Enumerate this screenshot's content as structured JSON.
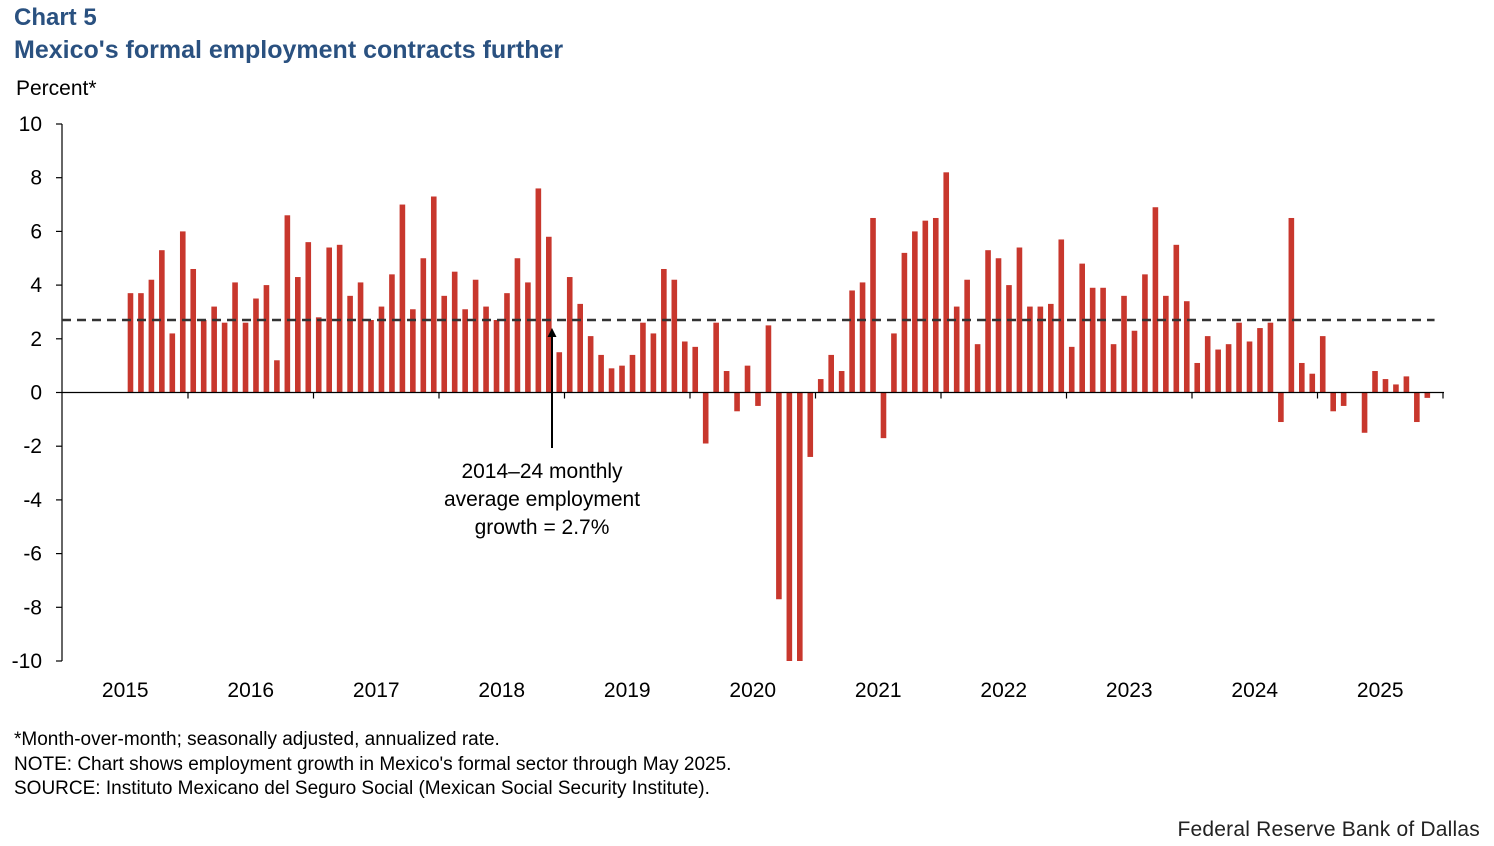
{
  "header": {
    "chart_label": "Chart 5",
    "title": "Mexico's formal employment contracts further"
  },
  "footer": {
    "note1": "*Month-over-month; seasonally adjusted, annualized rate.",
    "note2": "NOTE: Chart shows employment growth in Mexico's formal sector through May 2025.",
    "note3": "SOURCE: Instituto Mexicano del Seguro Social (Mexican Social Security Institute).",
    "brand": "Federal Reserve Bank of Dallas"
  },
  "colors": {
    "bar": "#c8372d",
    "title": "#2a5180",
    "avg_line": "#333333"
  },
  "chart_data": {
    "type": "bar",
    "title": "Mexico's formal employment contracts further",
    "ylabel": "Percent*",
    "xlabel": "",
    "ylim": [
      -10,
      10
    ],
    "yticks": [
      10,
      8,
      6,
      4,
      2,
      0,
      -2,
      -4,
      -6,
      -8,
      -10
    ],
    "year_labels": [
      "2015",
      "2016",
      "2017",
      "2018",
      "2019",
      "2020",
      "2021",
      "2022",
      "2023",
      "2024",
      "2025"
    ],
    "start": "2014-07",
    "end": "2025-05",
    "average_line": {
      "value": 2.7,
      "label_lines": [
        "2014–24 monthly",
        "average employment",
        "growth = 2.7%"
      ]
    },
    "series": [
      {
        "name": "Formal employment growth (month-over-month, SAAR)",
        "values": [
          3.7,
          3.7,
          4.2,
          5.3,
          2.2,
          6.0,
          4.6,
          2.7,
          3.2,
          2.6,
          4.1,
          2.6,
          3.5,
          4.0,
          1.2,
          6.6,
          4.3,
          5.6,
          2.8,
          5.4,
          5.5,
          3.6,
          4.1,
          2.7,
          3.2,
          4.4,
          7.0,
          3.1,
          5.0,
          7.3,
          3.6,
          4.5,
          3.1,
          4.2,
          3.2,
          2.7,
          3.7,
          5.0,
          4.1,
          7.6,
          5.8,
          1.5,
          4.3,
          3.3,
          2.1,
          1.4,
          0.9,
          1.0,
          1.4,
          2.6,
          2.2,
          4.6,
          4.2,
          1.9,
          1.7,
          -1.9,
          2.6,
          0.8,
          -0.7,
          1.0,
          -0.5,
          2.5,
          -7.7,
          -10.0,
          -10.0,
          -2.4,
          0.5,
          1.4,
          0.8,
          3.8,
          4.1,
          6.5,
          -1.7,
          2.2,
          5.2,
          6.0,
          6.4,
          6.5,
          8.2,
          3.2,
          4.2,
          1.8,
          5.3,
          5.0,
          4.0,
          5.4,
          3.2,
          3.2,
          3.3,
          5.7,
          1.7,
          4.8,
          3.9,
          3.9,
          1.8,
          3.6,
          2.3,
          4.4,
          6.9,
          3.6,
          5.5,
          3.4,
          1.1,
          2.1,
          1.6,
          1.8,
          2.6,
          1.9,
          2.4,
          2.6,
          -1.1,
          6.5,
          1.1,
          0.7,
          2.1,
          -0.7,
          -0.5,
          0,
          -1.5,
          0.8,
          0.5,
          0.3,
          0.6,
          -1.1,
          -0.2
        ]
      }
    ]
  }
}
